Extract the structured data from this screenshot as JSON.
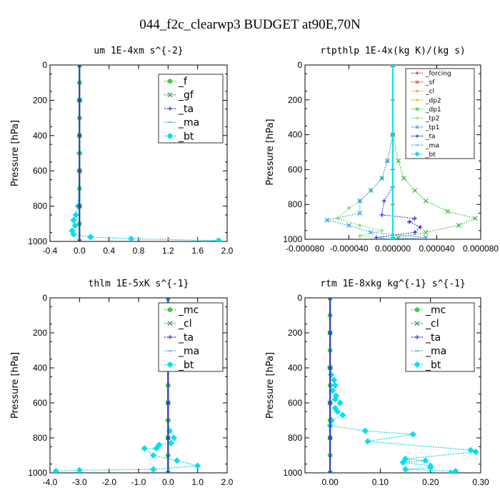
{
  "figure_title": "044_f2c_clearwp3  BUDGET at90E,70N",
  "chart_data": [
    {
      "type": "line",
      "title": "um  1E-4xm s^{-2}",
      "ylabel": "Pressure [hPa]",
      "xlim": [
        -0.4,
        2.0
      ],
      "ylim": [
        1000,
        0
      ],
      "xticks": [
        "-0.4",
        "0.0",
        "0.4",
        "0.8",
        "1.2",
        "1.6",
        "2.0"
      ],
      "xtick_values": [
        -0.4,
        0.0,
        0.4,
        0.8,
        1.2,
        1.6,
        2.0
      ],
      "yticks": [
        "0",
        "200",
        "400",
        "600",
        "800",
        "1000"
      ],
      "ytick_values": [
        0,
        200,
        400,
        600,
        800,
        1000
      ],
      "legend_position": "top-right",
      "legend_font": 14,
      "series": [
        {
          "name": "_f",
          "color": "#44cc44",
          "marker": "o",
          "x": [
            0,
            0,
            0,
            0,
            0,
            0,
            0,
            0,
            0,
            0,
            0
          ],
          "y": [
            0,
            100,
            200,
            300,
            400,
            500,
            600,
            700,
            800,
            900,
            1000
          ]
        },
        {
          "name": "_gf",
          "color": "#2e8b57",
          "marker": "x",
          "x": [
            0,
            0,
            0,
            0,
            0,
            0
          ],
          "y": [
            0,
            200,
            400,
            600,
            800,
            1000
          ]
        },
        {
          "name": "_ta",
          "color": "#3333cc",
          "marker": "+",
          "x": [
            0,
            0,
            0,
            0,
            0,
            0
          ],
          "y": [
            0,
            200,
            400,
            600,
            800,
            1000
          ]
        },
        {
          "name": "_ma",
          "color": "#55aacc",
          "marker": "-",
          "x": [
            0,
            0,
            0,
            -0.02,
            -0.05,
            -0.08,
            -0.06,
            -0.1,
            -0.08,
            0.15,
            0.7,
            1.88,
            1.9
          ],
          "y": [
            0,
            200,
            500,
            800,
            850,
            880,
            910,
            940,
            960,
            975,
            985,
            995,
            1000
          ]
        },
        {
          "name": "_bt",
          "color": "#00e0ee",
          "marker": "d",
          "x": [
            0,
            0,
            0,
            -0.02,
            -0.05,
            -0.08,
            -0.06,
            -0.1,
            -0.08,
            0.15,
            0.7,
            1.88,
            1.9
          ],
          "y": [
            0,
            200,
            500,
            800,
            850,
            880,
            910,
            940,
            960,
            975,
            985,
            995,
            1000
          ]
        }
      ]
    },
    {
      "type": "line",
      "title": "rtpthlp  1E-4x(kg K)/(kg s)",
      "ylabel": "Pressure [hPa]",
      "xlim": [
        -8e-05,
        8e-05
      ],
      "ylim": [
        1000,
        0
      ],
      "xticks": [
        "-0.000080",
        "-0.000040",
        "0.000000",
        "0.000040",
        "0.000080"
      ],
      "xtick_values": [
        -8e-05,
        -4e-05,
        0.0,
        4e-05,
        8e-05
      ],
      "yticks": [
        "0",
        "200",
        "400",
        "600",
        "800",
        "1000"
      ],
      "ytick_values": [
        0,
        200,
        400,
        600,
        800,
        1000
      ],
      "legend_position": "top-right",
      "legend_font": 9,
      "series": [
        {
          "name": "_forcing",
          "color": "#dd2222",
          "marker": "+",
          "x": [
            0,
            0,
            0,
            0,
            0,
            0
          ],
          "y": [
            0,
            200,
            400,
            600,
            800,
            1000
          ]
        },
        {
          "name": "_sf",
          "color": "#ee3333",
          "marker": "x",
          "x": [
            0,
            0
          ],
          "y": [
            0,
            1000
          ]
        },
        {
          "name": "_cl",
          "color": "#ee9900",
          "marker": "+",
          "x": [
            0,
            0
          ],
          "y": [
            0,
            1000
          ]
        },
        {
          "name": "_dp2",
          "color": "#ddbb00",
          "marker": "+",
          "x": [
            0,
            0
          ],
          "y": [
            0,
            1000
          ]
        },
        {
          "name": "_dp1",
          "color": "#33bb33",
          "marker": "x",
          "x": [
            0,
            0,
            5e-06,
            1e-05,
            2e-05,
            3e-05,
            5e-05,
            7.5e-05,
            6e-05,
            3e-05,
            5e-06,
            0
          ],
          "y": [
            0,
            400,
            550,
            650,
            720,
            780,
            840,
            880,
            920,
            960,
            990,
            1000
          ]
        },
        {
          "name": "_tp2",
          "color": "#66dd66",
          "marker": "+",
          "x": [
            0,
            0,
            -5e-06,
            -1e-05,
            -2e-05,
            -3e-05,
            -4e-05,
            -5e-05,
            -3e-05,
            -1e-05,
            -3e-05,
            0
          ],
          "y": [
            0,
            400,
            550,
            650,
            720,
            780,
            820,
            880,
            920,
            950,
            980,
            1000
          ]
        },
        {
          "name": "_tp1",
          "color": "#3399dd",
          "marker": "x",
          "x": [
            0,
            0,
            -5e-06,
            -1e-05,
            -2e-05,
            -3e-05,
            -3e-05,
            -6e-05,
            -4e-05,
            -2e-05,
            3e-05,
            -1e-05
          ],
          "y": [
            0,
            400,
            550,
            650,
            720,
            780,
            850,
            890,
            920,
            960,
            990,
            1000
          ]
        },
        {
          "name": "_ta",
          "color": "#2222cc",
          "marker": "+",
          "x": [
            0,
            0,
            -8e-06,
            -1e-05,
            2e-05,
            1.5e-05,
            2.5e-05,
            2e-05,
            -1.5e-05
          ],
          "y": [
            0,
            700,
            780,
            860,
            880,
            900,
            930,
            960,
            990
          ]
        },
        {
          "name": "_ma",
          "color": "#55aacc",
          "marker": "-",
          "x": [
            0,
            0
          ],
          "y": [
            0,
            1000
          ]
        },
        {
          "name": "_bt",
          "color": "#00e0ee",
          "marker": "d",
          "x": [
            0,
            0
          ],
          "y": [
            0,
            1000
          ]
        }
      ]
    },
    {
      "type": "line",
      "title": "thlm  1E-5xK  s^{-1}",
      "ylabel": "Pressure [hPa]",
      "xlim": [
        -4.0,
        2.0
      ],
      "ylim": [
        1000,
        0
      ],
      "xticks": [
        "-4.0",
        "-3.0",
        "-2.0",
        "-1.0",
        "0.0",
        "1.0",
        "2.0"
      ],
      "xtick_values": [
        -4.0,
        -3.0,
        -2.0,
        -1.0,
        0.0,
        1.0,
        2.0
      ],
      "yticks": [
        "0",
        "200",
        "400",
        "600",
        "800",
        "1000"
      ],
      "ytick_values": [
        0,
        200,
        400,
        600,
        800,
        1000
      ],
      "legend_position": "top-right",
      "legend_font": 14,
      "series": [
        {
          "name": "_mc",
          "color": "#44cc44",
          "marker": "o",
          "x": [
            0,
            0,
            0,
            0,
            0,
            0,
            0,
            0,
            0,
            0,
            0
          ],
          "y": [
            0,
            100,
            200,
            300,
            400,
            500,
            600,
            700,
            800,
            900,
            1000
          ]
        },
        {
          "name": "_cl",
          "color": "#2e8b57",
          "marker": "x",
          "x": [
            0,
            0,
            0,
            0,
            0,
            0
          ],
          "y": [
            0,
            200,
            400,
            600,
            800,
            1000
          ]
        },
        {
          "name": "_ta",
          "color": "#3333cc",
          "marker": "+",
          "x": [
            0,
            0,
            0,
            0,
            0,
            0
          ],
          "y": [
            0,
            200,
            400,
            600,
            800,
            1000
          ]
        },
        {
          "name": "_ma",
          "color": "#55aacc",
          "marker": "-",
          "x": [
            0,
            0,
            0.05,
            0.2,
            0.1,
            -0.3,
            -0.4,
            -0.8,
            -0.5,
            0.3,
            1.0,
            -0.5,
            -3.0,
            -3.8
          ],
          "y": [
            0,
            700,
            760,
            800,
            830,
            840,
            860,
            860,
            900,
            930,
            960,
            980,
            985,
            990
          ]
        },
        {
          "name": "_bt",
          "color": "#00e0ee",
          "marker": "d",
          "x": [
            0,
            0,
            0.05,
            0.2,
            0.1,
            -0.3,
            -0.4,
            -0.8,
            -0.5,
            0.3,
            1.0,
            -0.5,
            -3.0,
            -3.8
          ],
          "y": [
            0,
            700,
            760,
            800,
            830,
            840,
            860,
            860,
            900,
            930,
            960,
            980,
            985,
            990
          ]
        }
      ]
    },
    {
      "type": "line",
      "title": "rtm  1E-8xkg kg^{-1} s^{-1}",
      "ylabel": "Pressure [hPa]",
      "xlim": [
        -0.05,
        0.3
      ],
      "ylim": [
        1000,
        0
      ],
      "xticks": [
        "0.00",
        "0.10",
        "0.20",
        "0.30"
      ],
      "xtick_values": [
        0.0,
        0.1,
        0.2,
        0.3
      ],
      "yticks": [
        "0",
        "200",
        "400",
        "600",
        "800",
        "1000"
      ],
      "ytick_values": [
        0,
        200,
        400,
        600,
        800,
        1000
      ],
      "legend_position": "top-right",
      "legend_font": 14,
      "series": [
        {
          "name": "_mc",
          "color": "#44cc44",
          "marker": "o",
          "x": [
            0,
            0,
            0,
            0,
            0,
            0,
            0,
            0,
            0,
            0,
            0
          ],
          "y": [
            0,
            100,
            200,
            300,
            400,
            500,
            600,
            700,
            800,
            900,
            1000
          ]
        },
        {
          "name": "_cl",
          "color": "#2e8b57",
          "marker": "x",
          "x": [
            0,
            0,
            0,
            0,
            0,
            0
          ],
          "y": [
            0,
            200,
            400,
            600,
            800,
            1000
          ]
        },
        {
          "name": "_ta",
          "color": "#3333cc",
          "marker": "+",
          "x": [
            0,
            0,
            0,
            0,
            0,
            0
          ],
          "y": [
            0,
            200,
            400,
            600,
            800,
            1000
          ]
        },
        {
          "name": "_ma",
          "color": "#55aacc",
          "marker": "-",
          "x": [
            0,
            0,
            0.002,
            0.008,
            0.01,
            0.005,
            0.012,
            0.01,
            0.02,
            0.01,
            0.015,
            0.025,
            0.003,
            0.0,
            0.07,
            0.165,
            0.075,
            0.28,
            0.29,
            0.15,
            0.19,
            0.145,
            0.2,
            0.2,
            0.15,
            0.25,
            0.24
          ],
          "y": [
            0,
            400,
            440,
            470,
            500,
            530,
            560,
            580,
            600,
            630,
            650,
            670,
            700,
            730,
            760,
            780,
            820,
            870,
            880,
            920,
            930,
            940,
            960,
            970,
            980,
            990,
            1000
          ]
        },
        {
          "name": "_bt",
          "color": "#00e0ee",
          "marker": "d",
          "x": [
            0,
            0,
            0.002,
            0.008,
            0.01,
            0.005,
            0.012,
            0.01,
            0.02,
            0.01,
            0.015,
            0.025,
            0.003,
            0.0,
            0.07,
            0.165,
            0.075,
            0.28,
            0.29,
            0.15,
            0.19,
            0.145,
            0.2,
            0.2,
            0.15,
            0.25,
            0.24
          ],
          "y": [
            0,
            400,
            440,
            470,
            500,
            530,
            560,
            580,
            600,
            630,
            650,
            670,
            700,
            730,
            760,
            780,
            820,
            870,
            880,
            920,
            930,
            940,
            960,
            970,
            980,
            990,
            1000
          ]
        }
      ]
    }
  ]
}
